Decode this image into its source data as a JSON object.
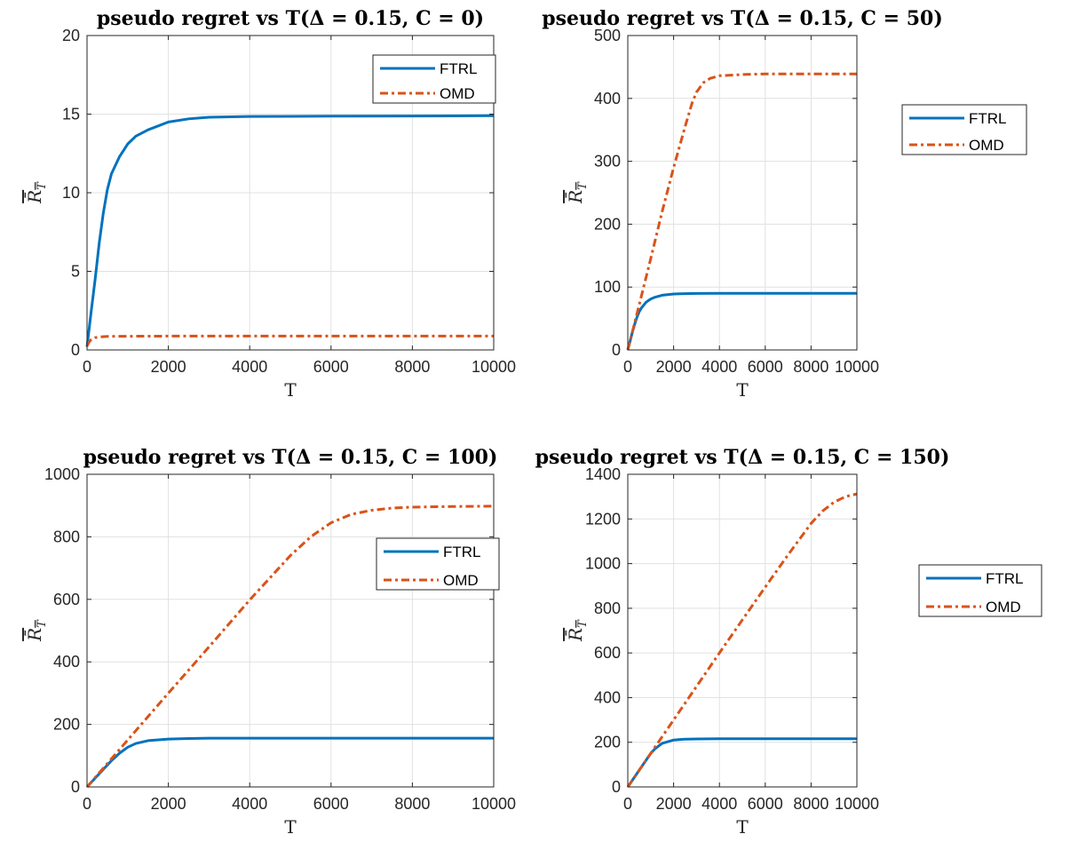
{
  "chart_data": [
    {
      "type": "line",
      "title": "pseudo regret vs T(Δ = 0.15, C = 0)",
      "xlabel": "T",
      "ylabel": "R̄_T",
      "xlim": [
        0,
        10000
      ],
      "ylim": [
        0,
        20
      ],
      "xticks": [
        "0",
        "2000",
        "4000",
        "6000",
        "8000",
        "10000"
      ],
      "yticks": [
        "0",
        "5",
        "10",
        "15",
        "20"
      ],
      "grid": true,
      "legend_position": "top-right",
      "series": [
        {
          "name": "FTRL",
          "color": "#0072BD",
          "style": "solid",
          "x": [
            0,
            50,
            100,
            200,
            300,
            400,
            500,
            600,
            800,
            1000,
            1200,
            1500,
            2000,
            2500,
            3000,
            4000,
            5000,
            6000,
            8000,
            10000
          ],
          "y": [
            0.2,
            1.3,
            2.4,
            4.5,
            6.8,
            8.7,
            10.2,
            11.2,
            12.3,
            13.1,
            13.6,
            14.0,
            14.5,
            14.7,
            14.8,
            14.85,
            14.86,
            14.87,
            14.88,
            14.9
          ]
        },
        {
          "name": "OMD",
          "color": "#D95319",
          "style": "dashdot",
          "x": [
            0,
            50,
            100,
            200,
            300,
            500,
            800,
            1000,
            2000,
            4000,
            6000,
            8000,
            10000
          ],
          "y": [
            0.25,
            0.5,
            0.65,
            0.78,
            0.83,
            0.86,
            0.87,
            0.87,
            0.88,
            0.88,
            0.88,
            0.88,
            0.88
          ]
        }
      ]
    },
    {
      "type": "line",
      "title": "pseudo regret vs T(Δ = 0.15, C = 50)",
      "xlabel": "T",
      "ylabel": "R̄_T",
      "xlim": [
        0,
        10000
      ],
      "ylim": [
        0,
        500
      ],
      "xticks": [
        "0",
        "2000",
        "4000",
        "6000",
        "8000",
        "10000"
      ],
      "yticks": [
        "0",
        "100",
        "200",
        "300",
        "400",
        "500"
      ],
      "grid": true,
      "legend_position": "right",
      "series": [
        {
          "name": "FTRL",
          "color": "#0072BD",
          "style": "solid",
          "x": [
            0,
            100,
            200,
            300,
            400,
            500,
            600,
            800,
            1000,
            1200,
            1500,
            2000,
            2500,
            3000,
            4000,
            6000,
            8000,
            10000
          ],
          "y": [
            0,
            14,
            28,
            41,
            52,
            61,
            67,
            76,
            81,
            84,
            87,
            89,
            89.5,
            89.8,
            90,
            90,
            90,
            90
          ]
        },
        {
          "name": "OMD",
          "color": "#D95319",
          "style": "dashdot",
          "x": [
            0,
            500,
            1000,
            1500,
            2000,
            2500,
            2800,
            3000,
            3300,
            3600,
            4000,
            5000,
            6000,
            8000,
            10000
          ],
          "y": [
            0,
            72,
            145,
            220,
            290,
            355,
            392,
            410,
            425,
            432,
            436,
            438,
            439,
            439,
            439
          ]
        }
      ]
    },
    {
      "type": "line",
      "title": "pseudo regret vs T(Δ = 0.15, C = 100)",
      "xlabel": "T",
      "ylabel": "R̄_T",
      "xlim": [
        0,
        10000
      ],
      "ylim": [
        0,
        1000
      ],
      "xticks": [
        "0",
        "2000",
        "4000",
        "6000",
        "8000",
        "10000"
      ],
      "yticks": [
        "0",
        "200",
        "400",
        "600",
        "800",
        "1000"
      ],
      "grid": true,
      "legend_position": "right",
      "series": [
        {
          "name": "FTRL",
          "color": "#0072BD",
          "style": "solid",
          "x": [
            0,
            200,
            400,
            600,
            800,
            1000,
            1200,
            1500,
            2000,
            2500,
            3000,
            4000,
            6000,
            8000,
            10000
          ],
          "y": [
            0,
            28,
            56,
            84,
            108,
            127,
            139,
            148,
            153,
            155,
            156,
            156,
            156,
            156,
            156
          ]
        },
        {
          "name": "OMD",
          "color": "#D95319",
          "style": "dashdot",
          "x": [
            0,
            1000,
            2000,
            3000,
            4000,
            5000,
            5500,
            6000,
            6500,
            7000,
            7500,
            8000,
            9000,
            10000
          ],
          "y": [
            0,
            150,
            300,
            448,
            598,
            740,
            800,
            845,
            872,
            885,
            892,
            895,
            897,
            898
          ]
        }
      ]
    },
    {
      "type": "line",
      "title": "pseudo regret vs T(Δ = 0.15, C = 150)",
      "xlabel": "T",
      "ylabel": "R̄_T",
      "xlim": [
        0,
        10000
      ],
      "ylim": [
        0,
        1400
      ],
      "xticks": [
        "0",
        "2000",
        "4000",
        "6000",
        "8000",
        "10000"
      ],
      "yticks": [
        "0",
        "200",
        "400",
        "600",
        "800",
        "1000",
        "1200",
        "1400"
      ],
      "grid": true,
      "legend_position": "right",
      "series": [
        {
          "name": "FTRL",
          "color": "#0072BD",
          "style": "solid",
          "x": [
            0,
            500,
            1000,
            1200,
            1500,
            2000,
            2500,
            3000,
            4000,
            6000,
            8000,
            10000
          ],
          "y": [
            0,
            75,
            150,
            172,
            195,
            210,
            214,
            215,
            216,
            216,
            216,
            216
          ]
        },
        {
          "name": "OMD",
          "color": "#D95319",
          "style": "dashdot",
          "x": [
            0,
            1000,
            2000,
            3000,
            4000,
            5000,
            6000,
            7000,
            7500,
            8000,
            8500,
            9000,
            9500,
            10000
          ],
          "y": [
            0,
            150,
            300,
            450,
            600,
            748,
            895,
            1040,
            1110,
            1180,
            1235,
            1275,
            1300,
            1312
          ]
        }
      ]
    }
  ]
}
